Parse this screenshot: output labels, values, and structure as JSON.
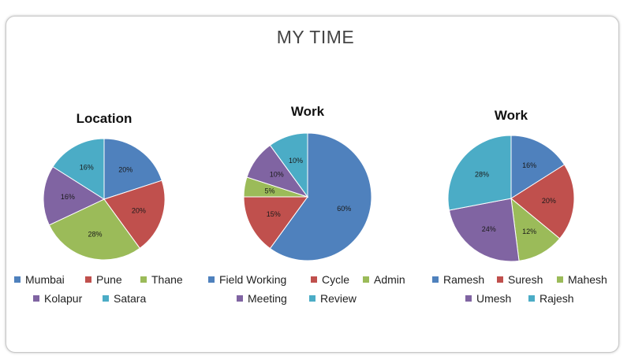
{
  "page": {
    "title": "MY TIME"
  },
  "colors": {
    "blue": "#4F81BD",
    "red": "#C0504D",
    "green": "#9BBB59",
    "purple": "#8064A2",
    "aqua": "#4BACC6"
  },
  "chart_data": [
    {
      "type": "pie",
      "title": "Location",
      "categories": [
        "Mumbai",
        "Pune",
        "Thane",
        "Kolapur",
        "Satara"
      ],
      "values": [
        20,
        20,
        28,
        16,
        16
      ],
      "data_labels": [
        "20%",
        "20%",
        "28%",
        "16%",
        "16%"
      ],
      "colors": [
        "#4F81BD",
        "#C0504D",
        "#9BBB59",
        "#8064A2",
        "#4BACC6"
      ],
      "legend_rows": [
        [
          "Mumbai",
          "Pune",
          "Thane"
        ],
        [
          "Kolapur",
          "Satara"
        ]
      ],
      "legend_position": "bottom"
    },
    {
      "type": "pie",
      "title": "Work",
      "categories": [
        "Field Working",
        "Cycle",
        "Admin",
        "Meeting",
        "Review"
      ],
      "values": [
        60,
        15,
        5,
        10,
        10
      ],
      "data_labels": [
        "60%",
        "15%",
        "5%",
        "10%",
        "10%"
      ],
      "colors": [
        "#4F81BD",
        "#C0504D",
        "#9BBB59",
        "#8064A2",
        "#4BACC6"
      ],
      "legend_rows": [
        [
          "Field Working",
          "Cycle",
          "Admin"
        ],
        [
          "Meeting",
          "Review"
        ]
      ],
      "legend_position": "bottom"
    },
    {
      "type": "pie",
      "title": "Work",
      "categories": [
        "Ramesh",
        "Suresh",
        "Mahesh",
        "Umesh",
        "Rajesh"
      ],
      "values": [
        16,
        20,
        12,
        24,
        28
      ],
      "data_labels": [
        "16%",
        "20%",
        "12%",
        "24%",
        "28%"
      ],
      "colors": [
        "#4F81BD",
        "#C0504D",
        "#9BBB59",
        "#8064A2",
        "#4BACC6"
      ],
      "legend_rows": [
        [
          "Ramesh",
          "Suresh",
          "Mahesh"
        ],
        [
          "Umesh",
          "Rajesh"
        ]
      ],
      "legend_position": "bottom"
    }
  ]
}
